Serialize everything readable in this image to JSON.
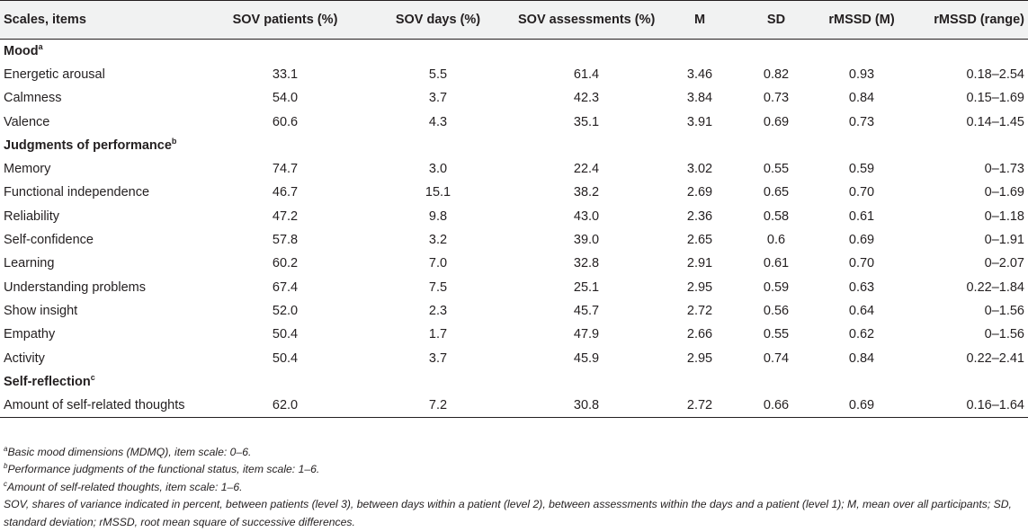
{
  "table": {
    "headers": [
      "Scales, items",
      "SOV patients (%)",
      "SOV days (%)",
      "SOV assessments (%)",
      "M",
      "SD",
      "rMSSD (M)",
      "rMSSD (range)"
    ],
    "sections": [
      {
        "title": "Mood",
        "sup": "a",
        "rows": [
          [
            "Energetic arousal",
            "33.1",
            "5.5",
            "61.4",
            "3.46",
            "0.82",
            "0.93",
            "0.18–2.54"
          ],
          [
            "Calmness",
            "54.0",
            "3.7",
            "42.3",
            "3.84",
            "0.73",
            "0.84",
            "0.15–1.69"
          ],
          [
            "Valence",
            "60.6",
            "4.3",
            "35.1",
            "3.91",
            "0.69",
            "0.73",
            "0.14–1.45"
          ]
        ]
      },
      {
        "title": "Judgments of performance",
        "sup": "b",
        "rows": [
          [
            "Memory",
            "74.7",
            "3.0",
            "22.4",
            "3.02",
            "0.55",
            "0.59",
            "0–1.73"
          ],
          [
            "Functional independence",
            "46.7",
            "15.1",
            "38.2",
            "2.69",
            "0.65",
            "0.70",
            "0–1.69"
          ],
          [
            "Reliability",
            "47.2",
            "9.8",
            "43.0",
            "2.36",
            "0.58",
            "0.61",
            "0–1.18"
          ],
          [
            "Self-confidence",
            "57.8",
            "3.2",
            "39.0",
            "2.65",
            "0.6",
            "0.69",
            "0–1.91"
          ],
          [
            "Learning",
            "60.2",
            "7.0",
            "32.8",
            "2.91",
            "0.61",
            "0.70",
            "0–2.07"
          ],
          [
            "Understanding problems",
            "67.4",
            "7.5",
            "25.1",
            "2.95",
            "0.59",
            "0.63",
            "0.22–1.84"
          ],
          [
            "Show insight",
            "52.0",
            "2.3",
            "45.7",
            "2.72",
            "0.56",
            "0.64",
            "0–1.56"
          ],
          [
            "Empathy",
            "50.4",
            "1.7",
            "47.9",
            "2.66",
            "0.55",
            "0.62",
            "0–1.56"
          ],
          [
            "Activity",
            "50.4",
            "3.7",
            "45.9",
            "2.95",
            "0.74",
            "0.84",
            "0.22–2.41"
          ]
        ]
      },
      {
        "title": "Self-reflection",
        "sup": "c",
        "rows": [
          [
            "Amount of self-related thoughts",
            "62.0",
            "7.2",
            "30.8",
            "2.72",
            "0.66",
            "0.69",
            "0.16–1.64"
          ]
        ]
      }
    ]
  },
  "footnotes": [
    {
      "marker": "a",
      "text": "Basic mood dimensions (MDMQ), item scale: 0–6."
    },
    {
      "marker": "b",
      "text": "Performance judgments of the functional status, item scale: 1–6."
    },
    {
      "marker": "c",
      "text": "Amount of self-related thoughts, item scale: 1–6."
    },
    {
      "marker": "",
      "text": "SOV, shares of variance indicated in percent, between patients (level 3), between days within a patient (level 2), between assessments within the days and a patient (level 1); M, mean over all participants; SD, standard deviation; rMSSD, root mean square of successive differences."
    }
  ]
}
